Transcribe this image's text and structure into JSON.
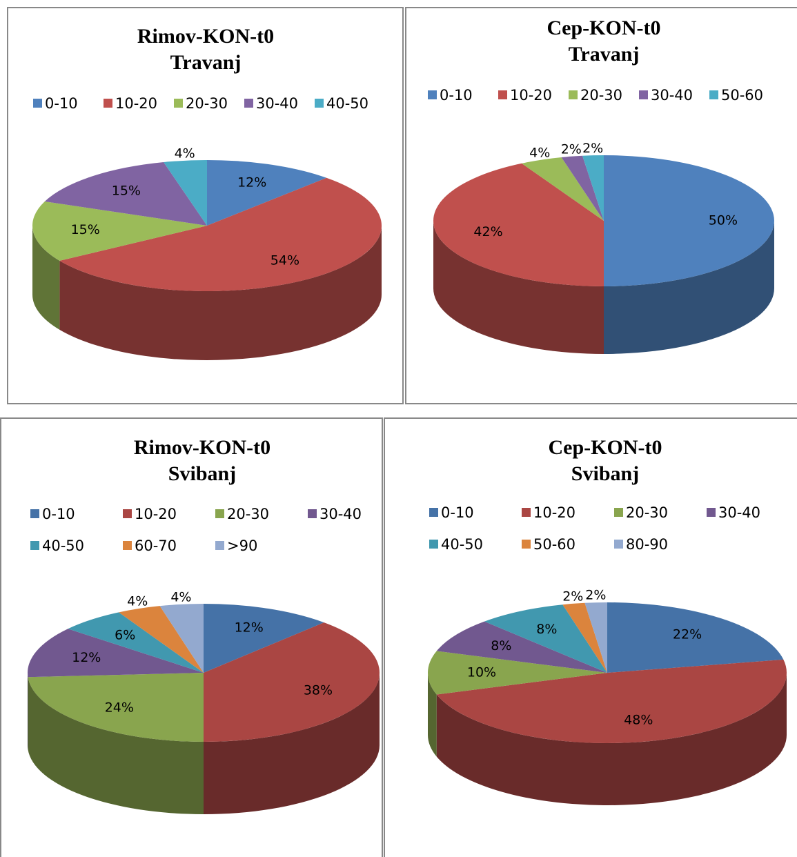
{
  "chart_data": [
    {
      "type": "pie",
      "title": "Rimov-KON-t0",
      "subtitle": "Travanj",
      "categories": [
        "0-10",
        "10-20",
        "20-30",
        "30-40",
        "40-50"
      ],
      "values": [
        12,
        54,
        15,
        15,
        4
      ],
      "value_labels": [
        "12%",
        "54%",
        "15%",
        "15%",
        "4%"
      ],
      "colors": [
        "#4f81bd",
        "#c0504d",
        "#9bbb59",
        "#8064a2",
        "#4bacc6"
      ]
    },
    {
      "type": "pie",
      "title": "Cep-KON-t0",
      "subtitle": "Travanj",
      "categories": [
        "0-10",
        "10-20",
        "20-30",
        "30-40",
        "50-60"
      ],
      "values": [
        50,
        42,
        4,
        2,
        2
      ],
      "value_labels": [
        "50%",
        "42%",
        "4%",
        "2%",
        "2%"
      ],
      "colors": [
        "#4f81bd",
        "#c0504d",
        "#9bbb59",
        "#8064a2",
        "#4bacc6"
      ]
    },
    {
      "type": "pie",
      "title": "Rimov-KON-t0",
      "subtitle": "Svibanj",
      "categories": [
        "0-10",
        "10-20",
        "20-30",
        "30-40",
        "40-50",
        "60-70",
        ">90"
      ],
      "values": [
        12,
        38,
        24,
        12,
        6,
        4,
        4
      ],
      "value_labels": [
        "12%",
        "38%",
        "24%",
        "12%",
        "6%",
        "4%",
        "4%"
      ],
      "colors": [
        "#4572a7",
        "#aa4643",
        "#89a54e",
        "#71588f",
        "#4198af",
        "#db843d",
        "#93a9cf"
      ]
    },
    {
      "type": "pie",
      "title": "Cep-KON-t0",
      "subtitle": "Svibanj",
      "categories": [
        "0-10",
        "10-20",
        "20-30",
        "30-40",
        "40-50",
        "50-60",
        "80-90"
      ],
      "values": [
        22,
        48,
        10,
        8,
        8,
        2,
        2
      ],
      "value_labels": [
        "22%",
        "48%",
        "10%",
        "8%",
        "8%",
        "2%",
        "2%"
      ],
      "colors": [
        "#4572a7",
        "#aa4643",
        "#89a54e",
        "#71588f",
        "#4198af",
        "#db843d",
        "#93a9cf"
      ]
    }
  ]
}
